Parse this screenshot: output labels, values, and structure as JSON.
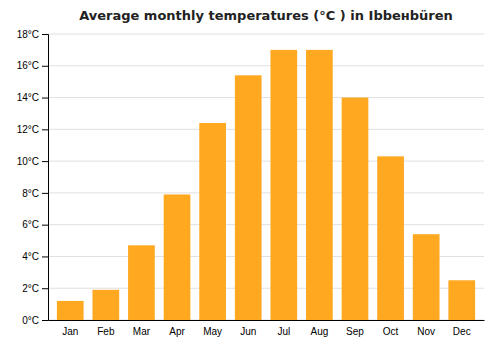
{
  "chart_data": {
    "type": "bar",
    "title": "Average monthly temperatures (°C ) in Ibbенbüren",
    "categories": [
      "Jan",
      "Feb",
      "Mar",
      "Apr",
      "May",
      "Jun",
      "Jul",
      "Aug",
      "Sep",
      "Oct",
      "Nov",
      "Dec"
    ],
    "values": [
      1.2,
      1.9,
      4.7,
      7.9,
      12.4,
      15.4,
      17.0,
      17.0,
      14.0,
      10.3,
      5.4,
      2.5
    ],
    "color": "#FFA820",
    "ylim": [
      0,
      18
    ],
    "yticks": [
      {
        "value": 0,
        "label": "0°C"
      },
      {
        "value": 2,
        "label": "2°C"
      },
      {
        "value": 4,
        "label": "4°C"
      },
      {
        "value": 6,
        "label": "6°C"
      },
      {
        "value": 8,
        "label": "8°C"
      },
      {
        "value": 10,
        "label": "10°C"
      },
      {
        "value": 12,
        "label": "12°C"
      },
      {
        "value": 14,
        "label": "14°C"
      },
      {
        "value": 16,
        "label": "16°C"
      },
      {
        "value": 18,
        "label": "18°C"
      }
    ],
    "grid": true
  }
}
